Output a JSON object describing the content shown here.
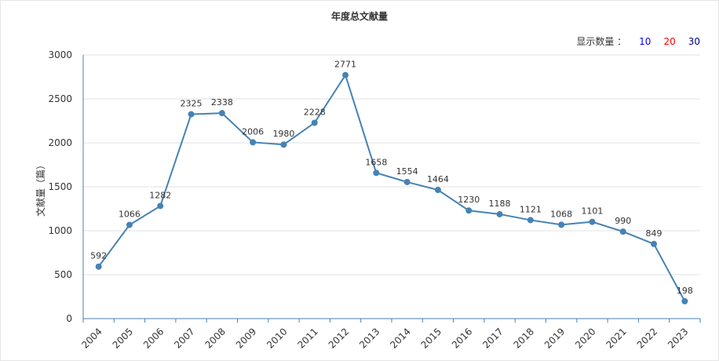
{
  "chart_title": "年度总文献量",
  "count_selector": {
    "label": "显示数量 ：",
    "options": [
      "10",
      "20",
      "30"
    ]
  },
  "chart_data": {
    "type": "line",
    "title": "年度总文献量",
    "xlabel": "",
    "ylabel": "文献量（篇）",
    "x": [
      "2004",
      "2005",
      "2006",
      "2007",
      "2008",
      "2009",
      "2010",
      "2011",
      "2012",
      "2013",
      "2014",
      "2015",
      "2016",
      "2017",
      "2018",
      "2019",
      "2020",
      "2021",
      "2022",
      "2023"
    ],
    "values": [
      592,
      1066,
      1282,
      2325,
      2338,
      2006,
      1980,
      2228,
      2771,
      1658,
      1554,
      1464,
      1230,
      1188,
      1121,
      1068,
      1101,
      990,
      849,
      198
    ],
    "ylim": [
      0,
      3000
    ],
    "yticks": [
      0,
      500,
      1000,
      1500,
      2000,
      2500,
      3000
    ],
    "grid": true,
    "legend": "none",
    "colors": {
      "line": "#4682b4"
    }
  }
}
